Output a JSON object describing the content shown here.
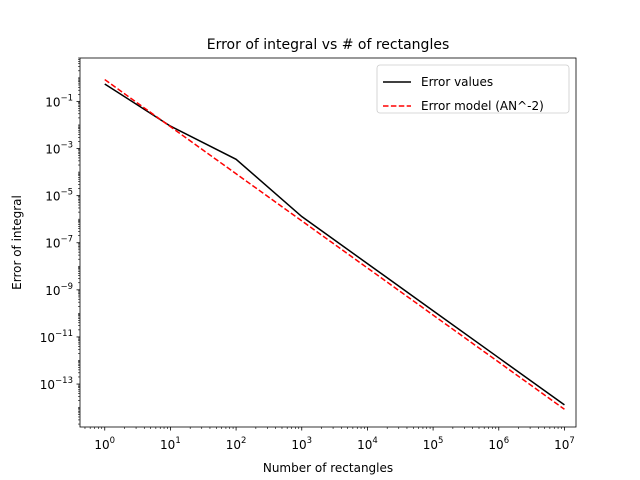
{
  "chart_data": {
    "type": "line",
    "title": "Error of integral vs # of rectangles",
    "xlabel": "Number of rectangles",
    "ylabel": "Error of integral",
    "xscale": "log",
    "yscale": "log",
    "xlim": [
      0.42,
      15000000
    ],
    "ylim": [
      1.5e-15,
      7
    ],
    "xticks": [
      {
        "value": 1,
        "base": "10",
        "exp": "0"
      },
      {
        "value": 10,
        "base": "10",
        "exp": "1"
      },
      {
        "value": 100,
        "base": "10",
        "exp": "2"
      },
      {
        "value": 1000,
        "base": "10",
        "exp": "3"
      },
      {
        "value": 10000,
        "base": "10",
        "exp": "4"
      },
      {
        "value": 100000,
        "base": "10",
        "exp": "5"
      },
      {
        "value": 1000000,
        "base": "10",
        "exp": "6"
      },
      {
        "value": 10000000,
        "base": "10",
        "exp": "7"
      }
    ],
    "yticks": [
      {
        "value": 0.1,
        "base": "10",
        "exp": "−1"
      },
      {
        "value": 0.001,
        "base": "10",
        "exp": "−3"
      },
      {
        "value": 1e-05,
        "base": "10",
        "exp": "−5"
      },
      {
        "value": 1e-07,
        "base": "10",
        "exp": "−7"
      },
      {
        "value": 1e-09,
        "base": "10",
        "exp": "−9"
      },
      {
        "value": 1e-11,
        "base": "10",
        "exp": "−11"
      },
      {
        "value": 1e-13,
        "base": "10",
        "exp": "−13"
      }
    ],
    "legend_position": "top-right",
    "series": [
      {
        "name": "Error values",
        "color": "#000000",
        "style": "solid",
        "x": [
          1,
          10,
          100,
          1000,
          10000,
          100000,
          1000000,
          10000000
        ],
        "y": [
          0.55,
          0.009,
          0.00035,
          1.3e-06,
          1.3e-08,
          1.3e-10,
          1.3e-12,
          1.3e-14
        ]
      },
      {
        "name": "Error model (AN^-2)",
        "color": "#ff0000",
        "style": "dashed",
        "x": [
          1,
          10,
          100,
          1000,
          10000,
          100000,
          1000000,
          10000000
        ],
        "y": [
          0.85,
          0.0085,
          8.5e-05,
          8.5e-07,
          8.5e-09,
          8.5e-11,
          8.5e-13,
          8.5e-15
        ]
      }
    ],
    "grid": false
  }
}
